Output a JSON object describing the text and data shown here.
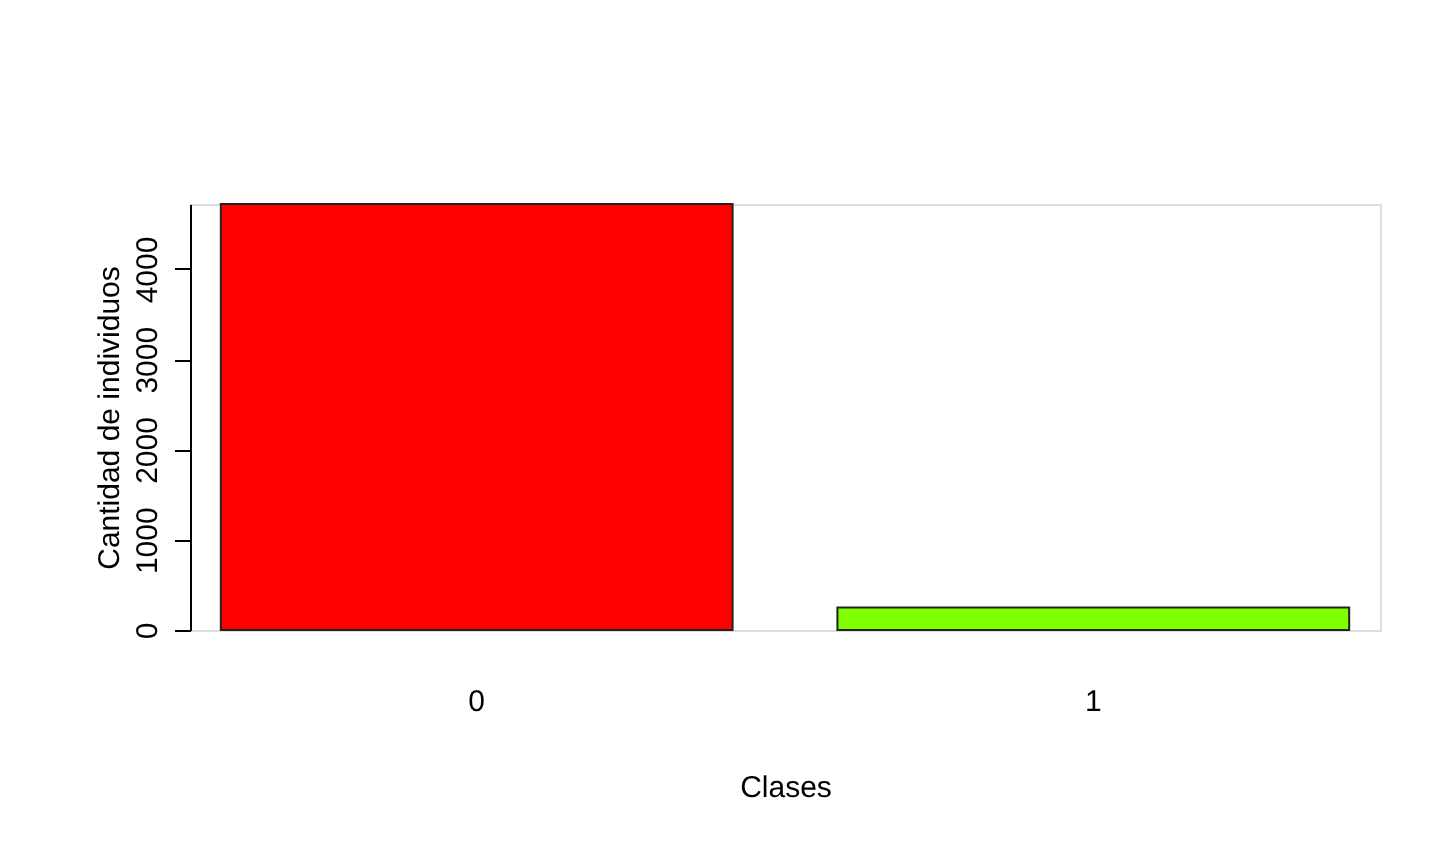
{
  "chart_data": {
    "type": "bar",
    "xlabel": "Clases",
    "ylabel": "Cantidad de individuos",
    "categories": [
      "0",
      "1"
    ],
    "values": [
      4720,
      250
    ],
    "colors": [
      "#ff0000",
      "#80ff00"
    ],
    "ylim": [
      0,
      4720
    ],
    "yticks": [
      0,
      1000,
      2000,
      3000,
      4000
    ],
    "grid": false
  }
}
